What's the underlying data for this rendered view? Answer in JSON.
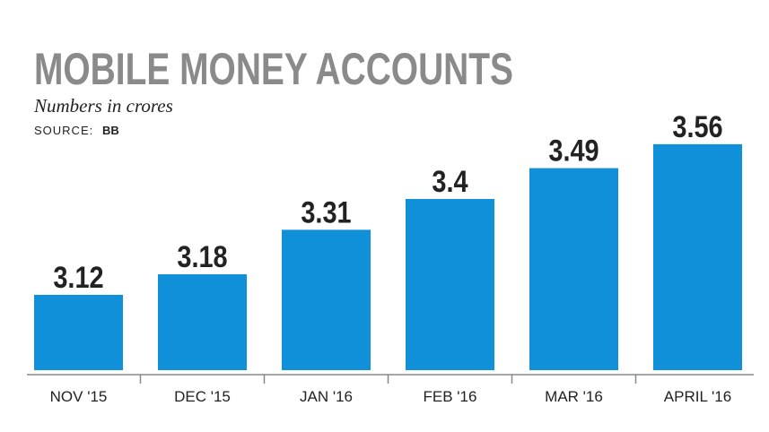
{
  "chart_data": {
    "type": "bar",
    "title": "MOBILE MONEY ACCOUNTS",
    "subtitle": "Numbers in crores",
    "source_label": "SOURCE:",
    "source": "BB",
    "categories": [
      "NOV '15",
      "DEC '15",
      "JAN '16",
      "FEB '16",
      "MAR '16",
      "APRIL '16"
    ],
    "values": [
      3.12,
      3.18,
      3.31,
      3.4,
      3.49,
      3.56
    ],
    "color": "#0f90d9",
    "ylim": [
      2.9,
      3.6
    ]
  }
}
